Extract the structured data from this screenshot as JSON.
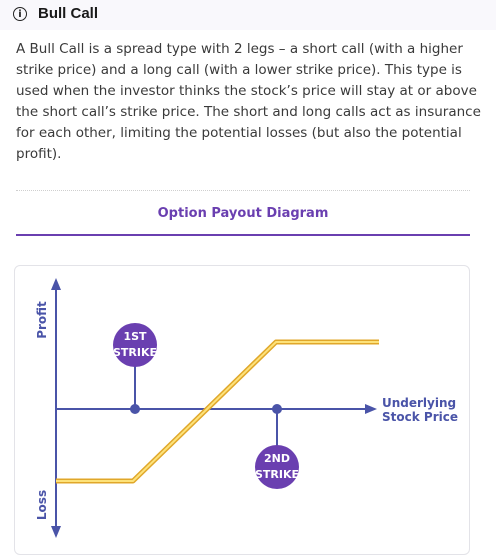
{
  "header": {
    "icon": "info-circle-icon",
    "icon_glyph": "i",
    "title": "Bull Call"
  },
  "description": "A Bull Call is a spread type with 2 legs – a short call (with a higher strike price) and a long call (with a lower strike price). This type is used when the investor thinks the stock’s price will stay at or above the short call’s strike price. The short and long calls act as insurance for each other, limiting the potential losses (but also the potential profit).",
  "diagram": {
    "title": "Option Payout Diagram",
    "y_axis_top_label": "Profit",
    "y_axis_bottom_label": "Loss",
    "x_axis_label_line1": "Underlying",
    "x_axis_label_line2": "Stock Price",
    "strike1": {
      "line1": "1ST",
      "line2": "STRIKE"
    },
    "strike2": {
      "line1": "2ND",
      "line2": "STRIKE"
    },
    "colors": {
      "axis": "#4a54a8",
      "payoff": "#f6c343",
      "badge": "#6a3fb0"
    }
  }
}
